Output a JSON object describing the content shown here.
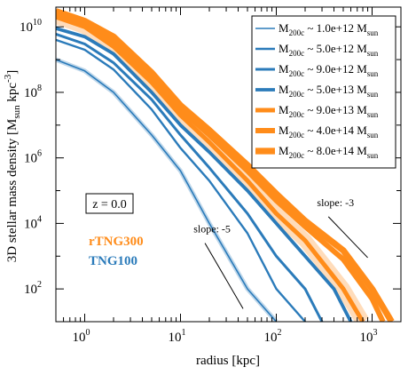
{
  "chart_data": {
    "type": "line",
    "xlabel": "radius [kpc]",
    "ylabel_parts": [
      "3D stellar mass density [M",
      "sun",
      " kpc",
      "-3",
      "]"
    ],
    "xscale": "log",
    "yscale": "log",
    "xlim": [
      0.5,
      2000
    ],
    "ylim": [
      10,
      40000000000
    ],
    "xticks": [
      {
        "value": 1,
        "base": "10",
        "exp": "0"
      },
      {
        "value": 10,
        "base": "10",
        "exp": "1"
      },
      {
        "value": 100,
        "base": "10",
        "exp": "2"
      },
      {
        "value": 1000,
        "base": "10",
        "exp": "3"
      }
    ],
    "yticks": [
      {
        "value": 100,
        "base": "10",
        "exp": "2"
      },
      {
        "value": 10000,
        "base": "10",
        "exp": "4"
      },
      {
        "value": 1000000,
        "base": "10",
        "exp": "6"
      },
      {
        "value": 100000000,
        "base": "10",
        "exp": "8"
      },
      {
        "value": 10000000000,
        "base": "10",
        "exp": "10"
      }
    ],
    "redshift_label": "z = 0.0",
    "simulation_labels": [
      {
        "text": "rTNG300",
        "color": "#ff8c1a"
      },
      {
        "text": "TNG100",
        "color": "#2b7bba"
      }
    ],
    "slope_guides": [
      {
        "label": "slope: -5",
        "x": [
          18,
          45
        ],
        "y": [
          2500,
          25
        ]
      },
      {
        "label": "slope: -3",
        "x": [
          350,
          900
        ],
        "y": [
          16000,
          900
        ]
      }
    ],
    "legend": {
      "placement": "top-right",
      "entries": [
        {
          "pre": "M",
          "sub": "200c",
          "mid": " ~ 1.0e+12 M",
          "sub2": "sun",
          "color": "#2b7bba",
          "weight": 1
        },
        {
          "pre": "M",
          "sub": "200c",
          "mid": " ~ 5.0e+12 M",
          "sub2": "sun",
          "color": "#2b7bba",
          "weight": 2
        },
        {
          "pre": "M",
          "sub": "200c",
          "mid": " ~ 9.0e+12 M",
          "sub2": "sun",
          "color": "#2b7bba",
          "weight": 3
        },
        {
          "pre": "M",
          "sub": "200c",
          "mid": " ~ 5.0e+13 M",
          "sub2": "sun",
          "color": "#2b7bba",
          "weight": 4
        },
        {
          "pre": "M",
          "sub": "200c",
          "mid": " ~ 9.0e+13 M",
          "sub2": "sun",
          "color": "#ff8c1a",
          "weight": 5
        },
        {
          "pre": "M",
          "sub": "200c",
          "mid": " ~ 4.0e+14 M",
          "sub2": "sun",
          "color": "#ff8c1a",
          "weight": 6
        },
        {
          "pre": "M",
          "sub": "200c",
          "mid": " ~ 8.0e+14 M",
          "sub2": "sun",
          "color": "#ff8c1a",
          "weight": 7
        }
      ]
    },
    "series": [
      {
        "color": "#2b7bba",
        "weight": 1,
        "band": true,
        "x": [
          0.5,
          1,
          2,
          5,
          10,
          20,
          50,
          100
        ],
        "y": [
          1000000000,
          450000000,
          100000000,
          5000000,
          400000,
          10000,
          100,
          10
        ]
      },
      {
        "color": "#2b7bba",
        "weight": 2,
        "band": false,
        "x": [
          0.5,
          1,
          2,
          5,
          10,
          20,
          50,
          100,
          200
        ],
        "y": [
          4000000000,
          2000000000,
          500000000,
          30000000,
          2000000,
          200000,
          5000,
          100,
          10
        ]
      },
      {
        "color": "#2b7bba",
        "weight": 3,
        "band": false,
        "x": [
          0.5,
          1,
          2,
          5,
          10,
          20,
          50,
          100,
          200,
          300
        ],
        "y": [
          6000000000,
          3000000000,
          800000000,
          60000000,
          5000000,
          500000,
          20000,
          1000,
          100,
          10
        ]
      },
      {
        "color": "#2b7bba",
        "weight": 4,
        "band": false,
        "x": [
          0.5,
          1,
          2,
          5,
          10,
          20,
          50,
          100,
          200,
          400,
          600
        ],
        "y": [
          9000000000,
          5000000000,
          1500000000,
          100000000,
          10000000,
          1500000,
          100000,
          10000,
          1000,
          100,
          10
        ]
      },
      {
        "color": "#ff8c1a",
        "weight": 5,
        "band": true,
        "x": [
          0.5,
          1,
          2,
          5,
          10,
          20,
          50,
          100,
          200,
          500,
          800
        ],
        "y": [
          20000000000,
          10000000000,
          2500000000,
          200000000,
          20000000,
          3000000,
          200000,
          20000,
          3000,
          100,
          10
        ]
      },
      {
        "color": "#ff8c1a",
        "weight": 6,
        "band": false,
        "x": [
          0.5,
          1,
          2,
          5,
          10,
          20,
          50,
          100,
          200,
          500,
          1000,
          1300
        ],
        "y": [
          25000000000,
          12000000000,
          3500000000,
          300000000,
          30000000,
          5000000,
          400000,
          50000,
          8000,
          800,
          50,
          10
        ]
      },
      {
        "color": "#ff8c1a",
        "weight": 7,
        "band": false,
        "x": [
          0.5,
          1,
          2,
          5,
          10,
          20,
          50,
          100,
          200,
          500,
          1000,
          1600
        ],
        "y": [
          30000000000,
          15000000000,
          5000000000,
          400000000,
          40000000,
          7000000,
          600000,
          80000,
          12000,
          1500,
          100,
          10
        ]
      }
    ]
  }
}
